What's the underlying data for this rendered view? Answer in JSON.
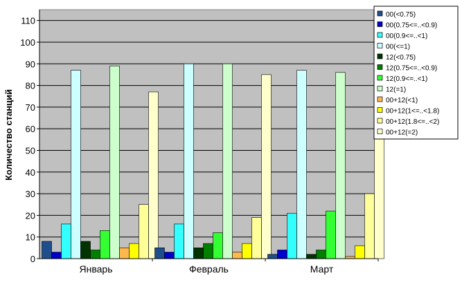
{
  "chart_data": {
    "type": "bar",
    "categories": [
      "Январь",
      "Февраль",
      "Март"
    ],
    "ylabel": "Количество станций",
    "xlabel": "",
    "ylim": [
      0,
      115
    ],
    "yticks": [
      0,
      10,
      20,
      30,
      40,
      50,
      60,
      70,
      80,
      90,
      100,
      110
    ],
    "grid": "horizontal",
    "legend_position": "right",
    "series": [
      {
        "name": "00(<0.75)",
        "color": "#1F4E8C",
        "values": [
          8,
          5,
          2
        ]
      },
      {
        "name": "00(0.75<=..<0.9)",
        "color": "#0000CC",
        "values": [
          3,
          3,
          4
        ]
      },
      {
        "name": "00(0.9<=..<1)",
        "color": "#33FFFF",
        "values": [
          16,
          16,
          21
        ]
      },
      {
        "name": "00(<=1)",
        "color": "#CCFFFF",
        "values": [
          87,
          90,
          87
        ]
      },
      {
        "name": "12(<0.75)",
        "color": "#003300",
        "values": [
          8,
          5,
          2
        ]
      },
      {
        "name": "12(0.75<=..<0.9)",
        "color": "#008000",
        "values": [
          4,
          7,
          4
        ]
      },
      {
        "name": "12(0.9<=..<1)",
        "color": "#33FF33",
        "values": [
          13,
          12,
          22
        ]
      },
      {
        "name": "12(=1)",
        "color": "#CCFFCC",
        "values": [
          89,
          90,
          86
        ]
      },
      {
        "name": "00+12(<1)",
        "color": "#FFB84D",
        "values": [
          5,
          3,
          1
        ]
      },
      {
        "name": "00+12(1<=..<1.8)",
        "color": "#FFFF00",
        "values": [
          7,
          7,
          6
        ]
      },
      {
        "name": "00+12(1.8<=..<2)",
        "color": "#FFFF99",
        "values": [
          25,
          19,
          30
        ]
      },
      {
        "name": "00+12(=2)",
        "color": "#FFFFCC",
        "values": [
          77,
          85,
          77
        ]
      }
    ],
    "plot_background": "#C0C0C0"
  }
}
